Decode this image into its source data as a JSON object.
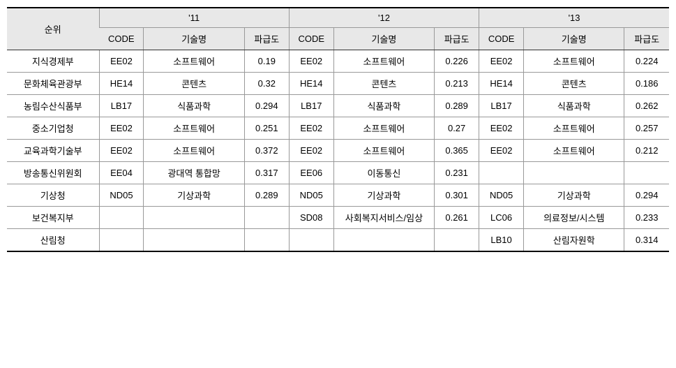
{
  "table": {
    "header": {
      "rank_label": "순위",
      "years": [
        "'11",
        "'12",
        "'13"
      ],
      "sub_columns": {
        "code": "CODE",
        "tech": "기술명",
        "impact": "파급도"
      }
    },
    "rows": [
      {
        "rank": "지식경제부",
        "y11": {
          "code": "EE02",
          "tech": "소프트웨어",
          "impact": "0.19"
        },
        "y12": {
          "code": "EE02",
          "tech": "소프트웨어",
          "impact": "0.226"
        },
        "y13": {
          "code": "EE02",
          "tech": "소프트웨어",
          "impact": "0.224"
        }
      },
      {
        "rank": "문화체육관광부",
        "y11": {
          "code": "HE14",
          "tech": "콘텐츠",
          "impact": "0.32"
        },
        "y12": {
          "code": "HE14",
          "tech": "콘텐츠",
          "impact": "0.213"
        },
        "y13": {
          "code": "HE14",
          "tech": "콘텐츠",
          "impact": "0.186"
        }
      },
      {
        "rank": "농림수산식품부",
        "y11": {
          "code": "LB17",
          "tech": "식품과학",
          "impact": "0.294"
        },
        "y12": {
          "code": "LB17",
          "tech": "식품과학",
          "impact": "0.289"
        },
        "y13": {
          "code": "LB17",
          "tech": "식품과학",
          "impact": "0.262"
        }
      },
      {
        "rank": "중소기업청",
        "y11": {
          "code": "EE02",
          "tech": "소프트웨어",
          "impact": "0.251"
        },
        "y12": {
          "code": "EE02",
          "tech": "소프트웨어",
          "impact": "0.27"
        },
        "y13": {
          "code": "EE02",
          "tech": "소프트웨어",
          "impact": "0.257"
        }
      },
      {
        "rank": "교육과학기술부",
        "y11": {
          "code": "EE02",
          "tech": "소프트웨어",
          "impact": "0.372"
        },
        "y12": {
          "code": "EE02",
          "tech": "소프트웨어",
          "impact": "0.365"
        },
        "y13": {
          "code": "EE02",
          "tech": "소프트웨어",
          "impact": "0.212"
        }
      },
      {
        "rank": "방송통신위원회",
        "y11": {
          "code": "EE04",
          "tech": "광대역 통합망",
          "impact": "0.317"
        },
        "y12": {
          "code": "EE06",
          "tech": "이동통신",
          "impact": "0.231"
        },
        "y13": {
          "code": "",
          "tech": "",
          "impact": ""
        }
      },
      {
        "rank": "기상청",
        "y11": {
          "code": "ND05",
          "tech": "기상과학",
          "impact": "0.289"
        },
        "y12": {
          "code": "ND05",
          "tech": "기상과학",
          "impact": "0.301"
        },
        "y13": {
          "code": "ND05",
          "tech": "기상과학",
          "impact": "0.294"
        }
      },
      {
        "rank": "보건복지부",
        "y11": {
          "code": "",
          "tech": "",
          "impact": ""
        },
        "y12": {
          "code": "SD08",
          "tech": "사회복지서비스/임상",
          "impact": "0.261"
        },
        "y13": {
          "code": "LC06",
          "tech": "의료정보/시스템",
          "impact": "0.233"
        }
      },
      {
        "rank": "산림청",
        "y11": {
          "code": "",
          "tech": "",
          "impact": ""
        },
        "y12": {
          "code": "",
          "tech": "",
          "impact": ""
        },
        "y13": {
          "code": "LB10",
          "tech": "산림자원학",
          "impact": "0.314"
        }
      }
    ]
  },
  "style": {
    "header_bg": "#e8e8e8",
    "body_bg": "#ffffff",
    "border_color": "#999999",
    "heavy_border_color": "#000000",
    "font_family": "Malgun Gothic",
    "font_size_pt": 10
  }
}
